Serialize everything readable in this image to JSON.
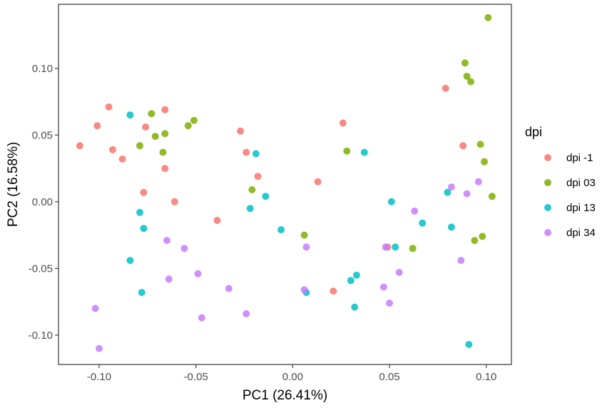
{
  "chart_data": {
    "type": "scatter",
    "title": "",
    "xlabel": "PC1 (26.41%)",
    "ylabel": "PC2 (16.58%)",
    "xlim": [
      -0.121,
      0.113
    ],
    "ylim": [
      -0.122,
      0.148
    ],
    "x_ticks": [
      -0.1,
      -0.05,
      0.0,
      0.05,
      0.1
    ],
    "x_tick_labels": [
      "-0.10",
      "-0.05",
      "0.00",
      "0.05",
      "0.10"
    ],
    "y_ticks": [
      -0.1,
      -0.05,
      0.0,
      0.05,
      0.1
    ],
    "y_tick_labels": [
      "-0.10",
      "-0.05",
      "0.00",
      "0.05",
      "0.10"
    ],
    "grid": false,
    "legend": {
      "title": "dpi",
      "position": "right"
    },
    "series": [
      {
        "name": "dpi -1",
        "color": "#F8766D",
        "points": [
          [
            -0.11,
            0.042
          ],
          [
            -0.101,
            0.057
          ],
          [
            -0.095,
            0.071
          ],
          [
            -0.093,
            0.039
          ],
          [
            -0.088,
            0.032
          ],
          [
            -0.076,
            0.056
          ],
          [
            -0.066,
            0.069
          ],
          [
            -0.066,
            0.025
          ],
          [
            -0.077,
            0.007
          ],
          [
            -0.061,
            0.0
          ],
          [
            -0.039,
            -0.014
          ],
          [
            -0.027,
            0.053
          ],
          [
            -0.024,
            0.037
          ],
          [
            -0.018,
            0.019
          ],
          [
            0.013,
            0.015
          ],
          [
            0.026,
            0.059
          ],
          [
            0.021,
            -0.067
          ],
          [
            0.049,
            -0.034
          ],
          [
            0.079,
            0.085
          ],
          [
            0.088,
            0.042
          ]
        ]
      },
      {
        "name": "dpi 03",
        "color": "#7CAE00",
        "points": [
          [
            -0.073,
            0.066
          ],
          [
            -0.071,
            0.049
          ],
          [
            -0.079,
            0.042
          ],
          [
            -0.067,
            0.037
          ],
          [
            -0.066,
            0.051
          ],
          [
            -0.054,
            0.057
          ],
          [
            -0.051,
            0.061
          ],
          [
            -0.021,
            0.009
          ],
          [
            0.006,
            -0.025
          ],
          [
            0.028,
            0.038
          ],
          [
            0.062,
            -0.035
          ],
          [
            0.089,
            0.104
          ],
          [
            0.09,
            0.094
          ],
          [
            0.092,
            0.09
          ],
          [
            0.097,
            0.043
          ],
          [
            0.099,
            0.03
          ],
          [
            0.094,
            -0.029
          ],
          [
            0.098,
            -0.026
          ],
          [
            0.101,
            0.138
          ],
          [
            0.103,
            0.004
          ]
        ]
      },
      {
        "name": "dpi 13",
        "color": "#00BFC4",
        "points": [
          [
            -0.084,
            0.065
          ],
          [
            -0.079,
            -0.008
          ],
          [
            -0.077,
            -0.02
          ],
          [
            -0.084,
            -0.044
          ],
          [
            -0.078,
            -0.068
          ],
          [
            -0.019,
            0.036
          ],
          [
            -0.014,
            0.004
          ],
          [
            -0.022,
            -0.005
          ],
          [
            -0.006,
            -0.021
          ],
          [
            0.007,
            -0.068
          ],
          [
            0.03,
            -0.059
          ],
          [
            0.033,
            -0.055
          ],
          [
            0.032,
            -0.079
          ],
          [
            0.037,
            0.037
          ],
          [
            0.051,
            0.0
          ],
          [
            0.053,
            -0.034
          ],
          [
            0.067,
            -0.016
          ],
          [
            0.08,
            0.007
          ],
          [
            0.082,
            -0.019
          ],
          [
            0.091,
            -0.107
          ]
        ]
      },
      {
        "name": "dpi 34",
        "color": "#C77CFF",
        "points": [
          [
            -0.102,
            -0.08
          ],
          [
            -0.1,
            -0.11
          ],
          [
            -0.065,
            -0.029
          ],
          [
            -0.056,
            -0.035
          ],
          [
            -0.064,
            -0.058
          ],
          [
            -0.049,
            -0.054
          ],
          [
            -0.047,
            -0.087
          ],
          [
            -0.033,
            -0.065
          ],
          [
            -0.024,
            -0.084
          ],
          [
            0.007,
            -0.034
          ],
          [
            0.006,
            -0.066
          ],
          [
            0.048,
            -0.034
          ],
          [
            0.047,
            -0.064
          ],
          [
            0.05,
            -0.076
          ],
          [
            0.055,
            -0.053
          ],
          [
            0.063,
            -0.007
          ],
          [
            0.082,
            0.011
          ],
          [
            0.09,
            0.006
          ],
          [
            0.096,
            0.015
          ],
          [
            0.087,
            -0.044
          ]
        ]
      }
    ]
  }
}
